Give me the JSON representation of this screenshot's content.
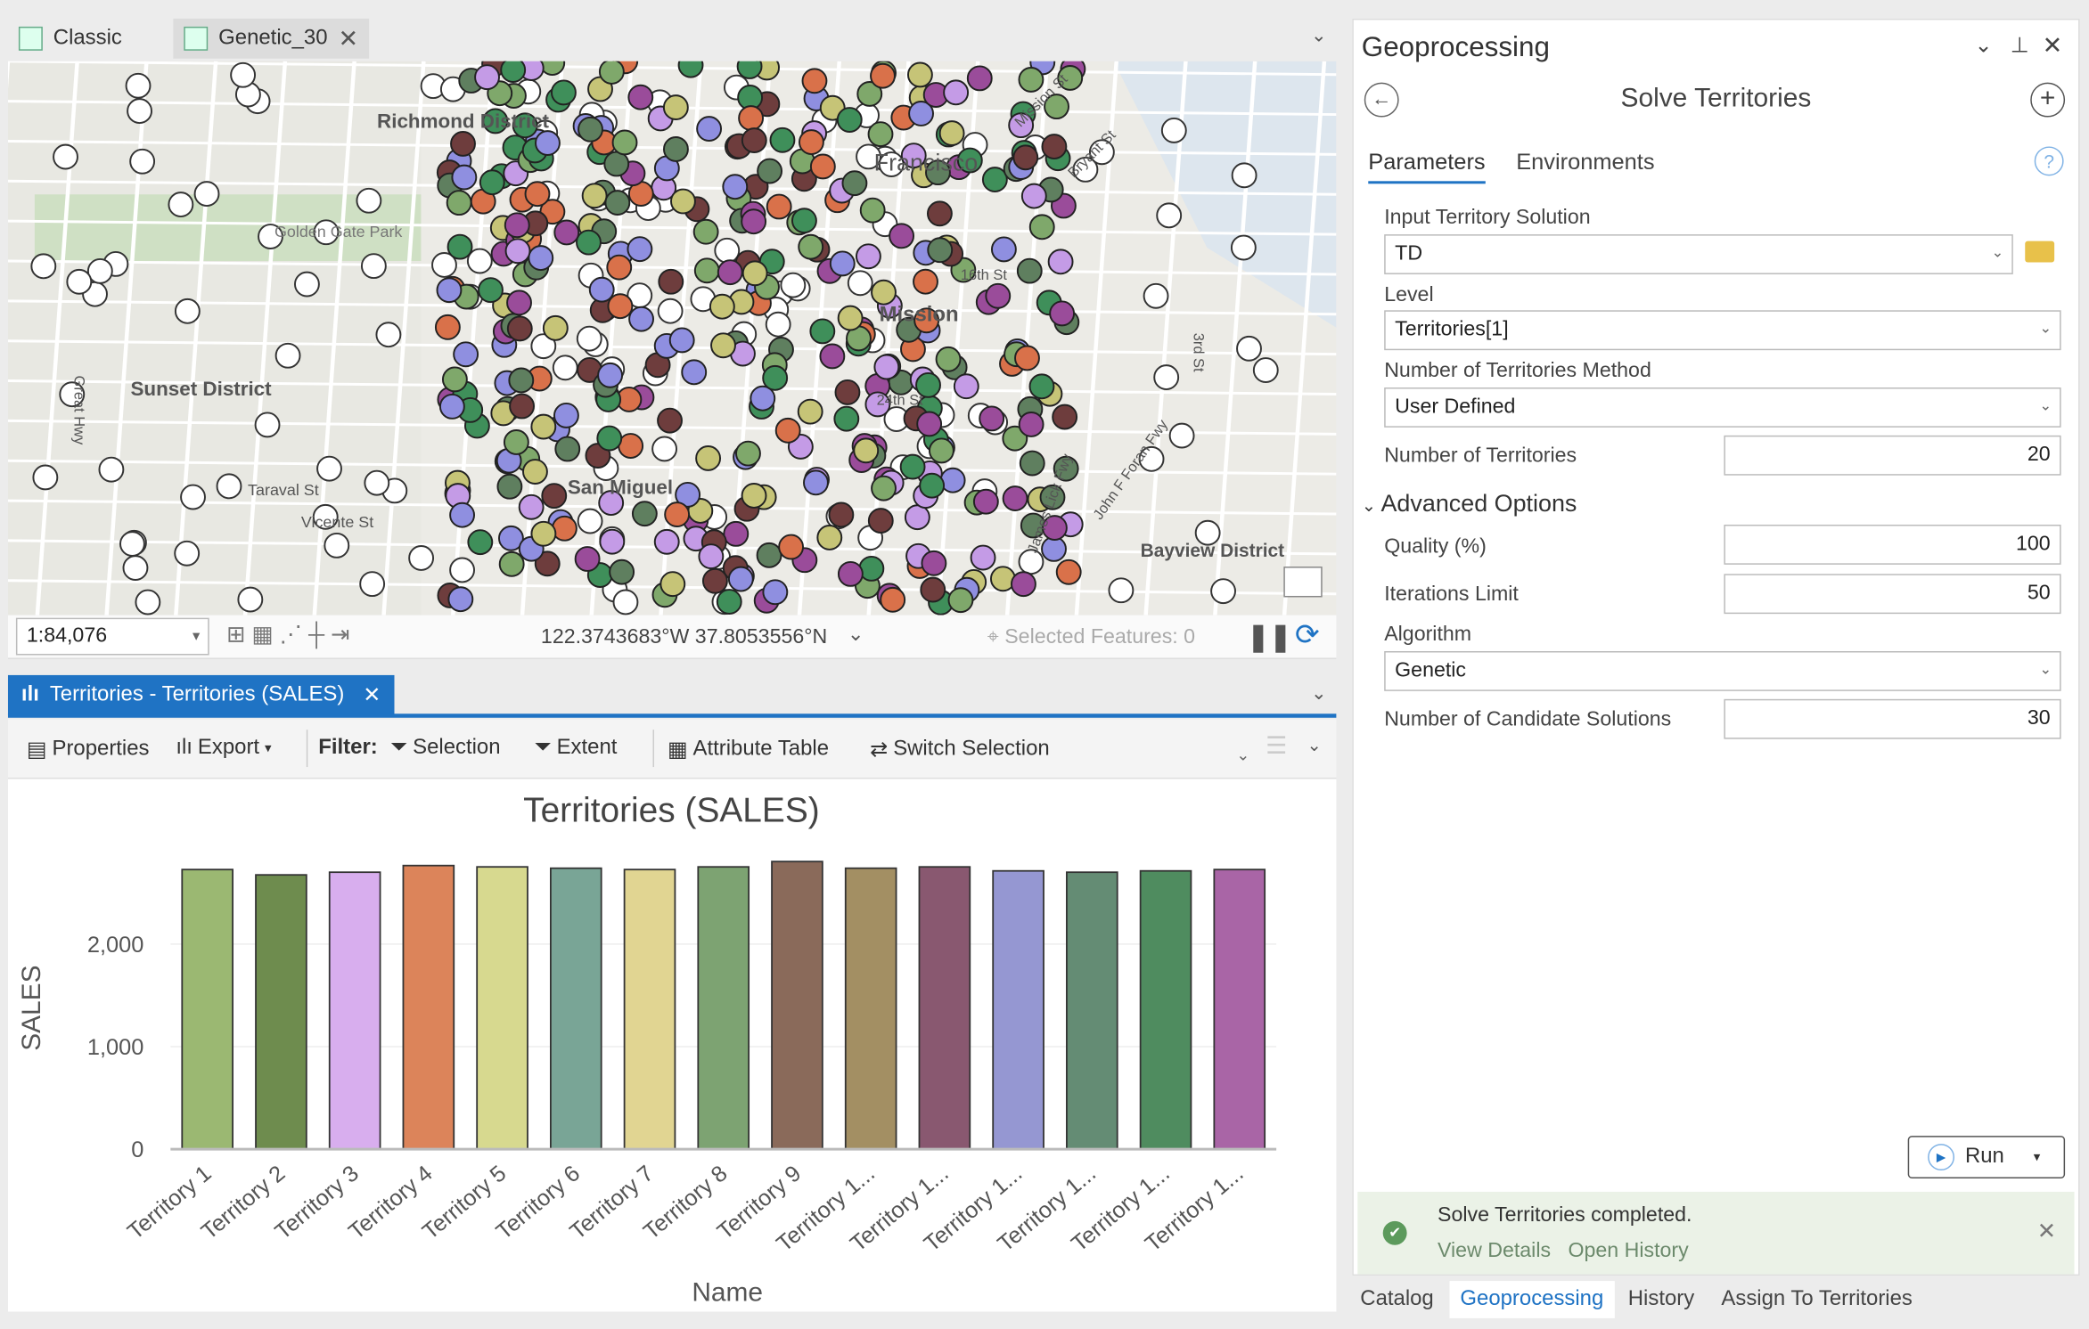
{
  "map_view": {
    "tabs": [
      {
        "label": "Classic"
      },
      {
        "label": "Genetic_30"
      }
    ],
    "labels": {
      "richmond": "Richmond District",
      "ggpark": "Golden Gate Park",
      "sunset": "Sunset District",
      "mission": "Mission",
      "sanmiguel": "San Miguel",
      "bayview": "Bayview District",
      "st16": "16th St",
      "taraval": "Taraval St",
      "vicente": "Vicente St",
      "greathwy": "Great Hwy",
      "third": "3rd St",
      "jff": "John F Foran Fwy",
      "jlf": "James Lick Fwy",
      "bryant": "Bryant St",
      "missionst": "Mission St",
      "st24": "24th St",
      "francisco": "Francisco"
    },
    "scale": "1:84,076",
    "coordinates": "122.3743683°W 37.8053556°N",
    "selected_features": "Selected Features: 0"
  },
  "chart_view": {
    "tab_label": "Territories - Territories (SALES)",
    "toolbar": {
      "properties": "Properties",
      "export": "Export",
      "filter": "Filter:",
      "selection": "Selection",
      "extent": "Extent",
      "attribute_table": "Attribute Table",
      "switch_selection": "Switch Selection"
    }
  },
  "chart_data": {
    "type": "bar",
    "title": "Territories (SALES)",
    "xlabel": "Name",
    "ylabel": "SALES",
    "ylim": [
      0,
      3000
    ],
    "yticks": [
      {
        "v": 0,
        "label": "0"
      },
      {
        "v": 1000,
        "label": "1,000"
      },
      {
        "v": 2000,
        "label": "2,000"
      }
    ],
    "grid": true,
    "categories": [
      "Territory 1",
      "Territory 2",
      "Territory 3",
      "Territory 4",
      "Territory 5",
      "Territory 6",
      "Territory 7",
      "Territory 8",
      "Territory 9",
      "Territory 1...",
      "Territory 1...",
      "Territory 1...",
      "Territory 1...",
      "Territory 1...",
      "Territory 1..."
    ],
    "values": [
      2727,
      2675,
      2701,
      2766,
      2753,
      2740,
      2727,
      2753,
      2805,
      2740,
      2753,
      2714,
      2701,
      2714,
      2727
    ],
    "colors": [
      "#9bb872",
      "#6e8c4e",
      "#d8aeee",
      "#dc845a",
      "#d7d98f",
      "#79a596",
      "#e1d592",
      "#7da372",
      "#8a6a5a",
      "#a38f63",
      "#895870",
      "#9597d2",
      "#648c74",
      "#4f8c5f",
      "#a965a6"
    ]
  },
  "geoprocessing": {
    "pane_title": "Geoprocessing",
    "tool_title": "Solve Territories",
    "tabs": {
      "parameters": "Parameters",
      "environments": "Environments"
    },
    "params": {
      "input_label": "Input Territory Solution",
      "input_value": "TD",
      "level_label": "Level",
      "level_value": "Territories[1]",
      "method_label": "Number of Territories Method",
      "method_value": "User Defined",
      "num_label": "Number of Territories",
      "num_value": "20",
      "advanced": "Advanced Options",
      "quality_label": "Quality (%)",
      "quality_value": "100",
      "iter_label": "Iterations Limit",
      "iter_value": "50",
      "alg_label": "Algorithm",
      "alg_value": "Genetic",
      "cand_label": "Number of Candidate Solutions",
      "cand_value": "30"
    },
    "run": "Run",
    "message": {
      "text": "Solve Territories completed.",
      "view_details": "View Details",
      "open_history": "Open History"
    },
    "bottom_tabs": [
      {
        "label": "Catalog"
      },
      {
        "label": "Geoprocessing"
      },
      {
        "label": "History"
      },
      {
        "label": "Assign To Territories"
      }
    ],
    "accent": "#1f73c4"
  }
}
